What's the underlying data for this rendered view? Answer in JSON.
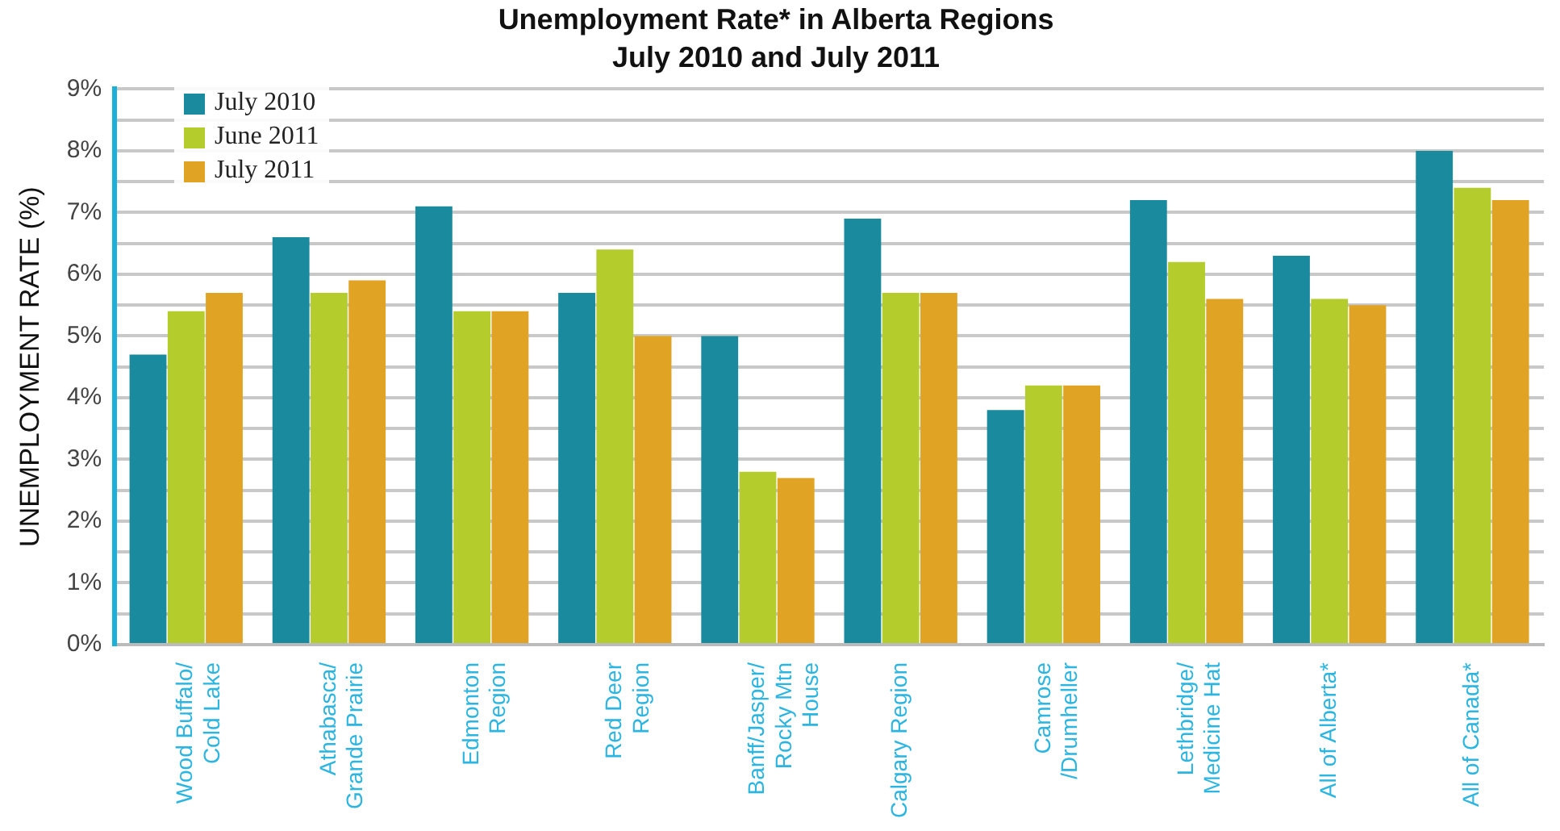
{
  "chart_data": {
    "type": "bar",
    "title": "Unemployment Rate* in Alberta Regions",
    "subtitle": "July 2010 and July 2011",
    "ylabel": "UNEMPLOYMENT RATE (%)",
    "categories": [
      "Wood Buffalo/\nCold Lake",
      "Athabasca/\nGrande Prairie",
      "Edmonton\nRegion",
      "Red Deer\nRegion",
      "Banff/Jasper/\nRocky Mtn\nHouse",
      "Calgary Region",
      "Camrose\n/Drumheller",
      "Lethbridge/\nMedicine Hat",
      "All of Alberta*",
      "All of Canada*"
    ],
    "series": [
      {
        "name": "July 2010",
        "color": "#1a8a9e",
        "values": [
          4.7,
          6.6,
          7.1,
          5.7,
          5.0,
          6.9,
          3.8,
          7.2,
          6.3,
          8.0
        ]
      },
      {
        "name": "June 2011",
        "color": "#b4cc2c",
        "values": [
          5.4,
          5.7,
          5.4,
          6.4,
          2.8,
          5.7,
          4.2,
          6.2,
          5.6,
          7.4
        ]
      },
      {
        "name": "July 2011",
        "color": "#e0a324",
        "values": [
          5.7,
          5.9,
          5.4,
          5.0,
          2.7,
          5.7,
          4.2,
          5.6,
          5.5,
          7.2
        ]
      }
    ],
    "ylim": [
      0,
      9
    ],
    "yticks": [
      {
        "value": 0,
        "label": "0%"
      },
      {
        "value": 0.5,
        "label": null
      },
      {
        "value": 1,
        "label": "1%"
      },
      {
        "value": 1.5,
        "label": null
      },
      {
        "value": 2,
        "label": "2%"
      },
      {
        "value": 2.5,
        "label": null
      },
      {
        "value": 3,
        "label": "3%"
      },
      {
        "value": 3.5,
        "label": null
      },
      {
        "value": 4,
        "label": "4%"
      },
      {
        "value": 4.5,
        "label": null
      },
      {
        "value": 5,
        "label": "5%"
      },
      {
        "value": 5.5,
        "label": null
      },
      {
        "value": 6,
        "label": "6%"
      },
      {
        "value": 6.5,
        "label": null
      },
      {
        "value": 7,
        "label": "7%"
      },
      {
        "value": 7.5,
        "label": null
      },
      {
        "value": 8,
        "label": "8%"
      },
      {
        "value": 8.5,
        "label": null
      },
      {
        "value": 9,
        "label": "9%"
      }
    ],
    "grid": "y",
    "legend": "top left"
  }
}
